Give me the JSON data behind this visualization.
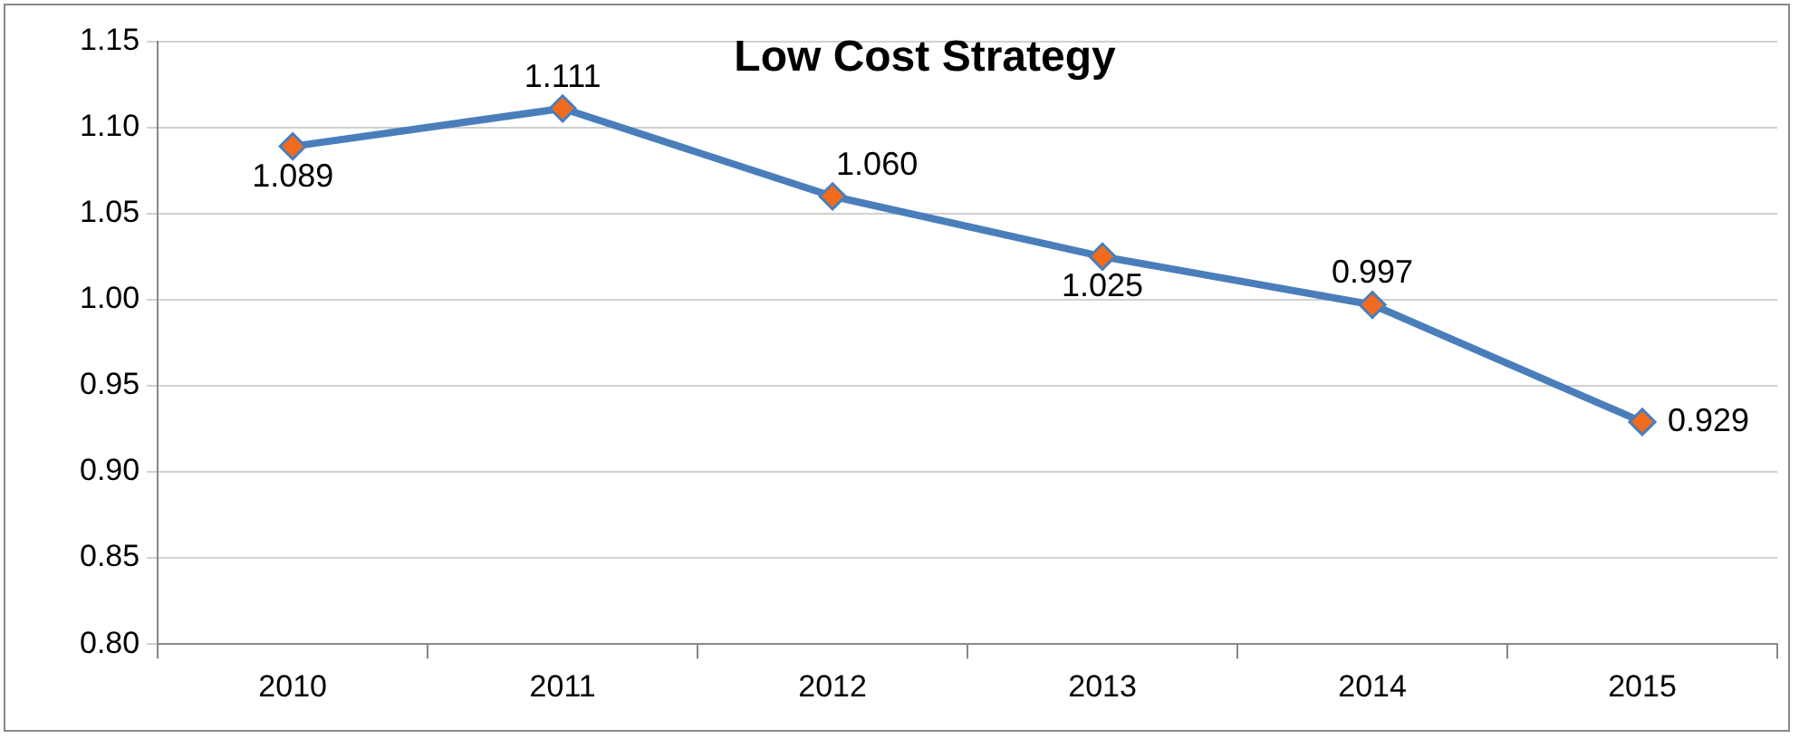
{
  "chart_data": {
    "type": "line",
    "title": "Low Cost Strategy",
    "categories": [
      "2010",
      "2011",
      "2012",
      "2013",
      "2014",
      "2015"
    ],
    "series": [
      {
        "color": "#4a7ebb",
        "values": [
          1.089,
          1.111,
          1.06,
          1.025,
          0.997,
          0.929
        ],
        "value_labels": [
          "1.089",
          "1.111",
          "1.060",
          "1.025",
          "0.997",
          "0.929"
        ]
      }
    ],
    "ylim": [
      0.8,
      1.15
    ],
    "yticks": [
      {
        "value": 0.8,
        "label": "0.80"
      },
      {
        "value": 0.85,
        "label": "0.85"
      },
      {
        "value": 0.9,
        "label": "0.90"
      },
      {
        "value": 0.95,
        "label": "0.95"
      },
      {
        "value": 1.0,
        "label": "1.00"
      },
      {
        "value": 1.05,
        "label": "1.05"
      },
      {
        "value": 1.1,
        "label": "1.10"
      },
      {
        "value": 1.15,
        "label": "1.15"
      }
    ],
    "grid": "y",
    "legend": false,
    "marker": "diamond",
    "line_style": "solid"
  }
}
